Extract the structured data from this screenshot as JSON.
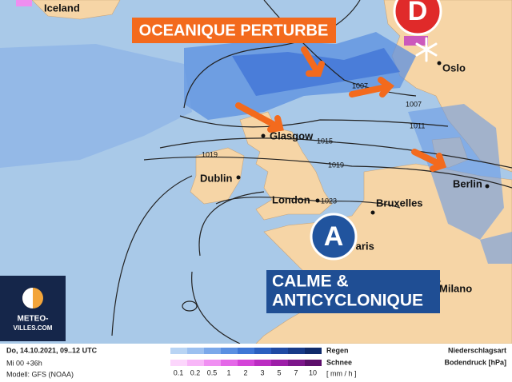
{
  "map": {
    "places": [
      "Iceland",
      "Oslo",
      "Glasgow",
      "Dublin",
      "London",
      "Bruxelles",
      "Berlin",
      "Paris",
      "Milano"
    ],
    "isobars": [
      "1007",
      "1007",
      "1011",
      "1015",
      "1019",
      "1019",
      "1023"
    ],
    "low": "D",
    "high": "A",
    "callout_top": "OCEANIQUE PERTURBE",
    "callout_bottom": [
      "CALME &",
      "ANTICYCLONIQUE"
    ]
  },
  "logo": {
    "line1": "METEO-",
    "line2": "VILLES.COM"
  },
  "footer": {
    "date": "Do, 14.10.2021, 09..12 UTC",
    "run": "Mi 00 +36h",
    "model": "Modell: GFS (NOAA)",
    "rain": "Regen",
    "snow": "Schnee",
    "unit": "[ mm / h ]",
    "scale": [
      "0.1",
      "0.2",
      "0.5",
      "1",
      "2",
      "3",
      "5",
      "7",
      "10"
    ],
    "type_label": "Niederschlagsart",
    "pressure_label": "Bodendruck [hPa]"
  }
}
